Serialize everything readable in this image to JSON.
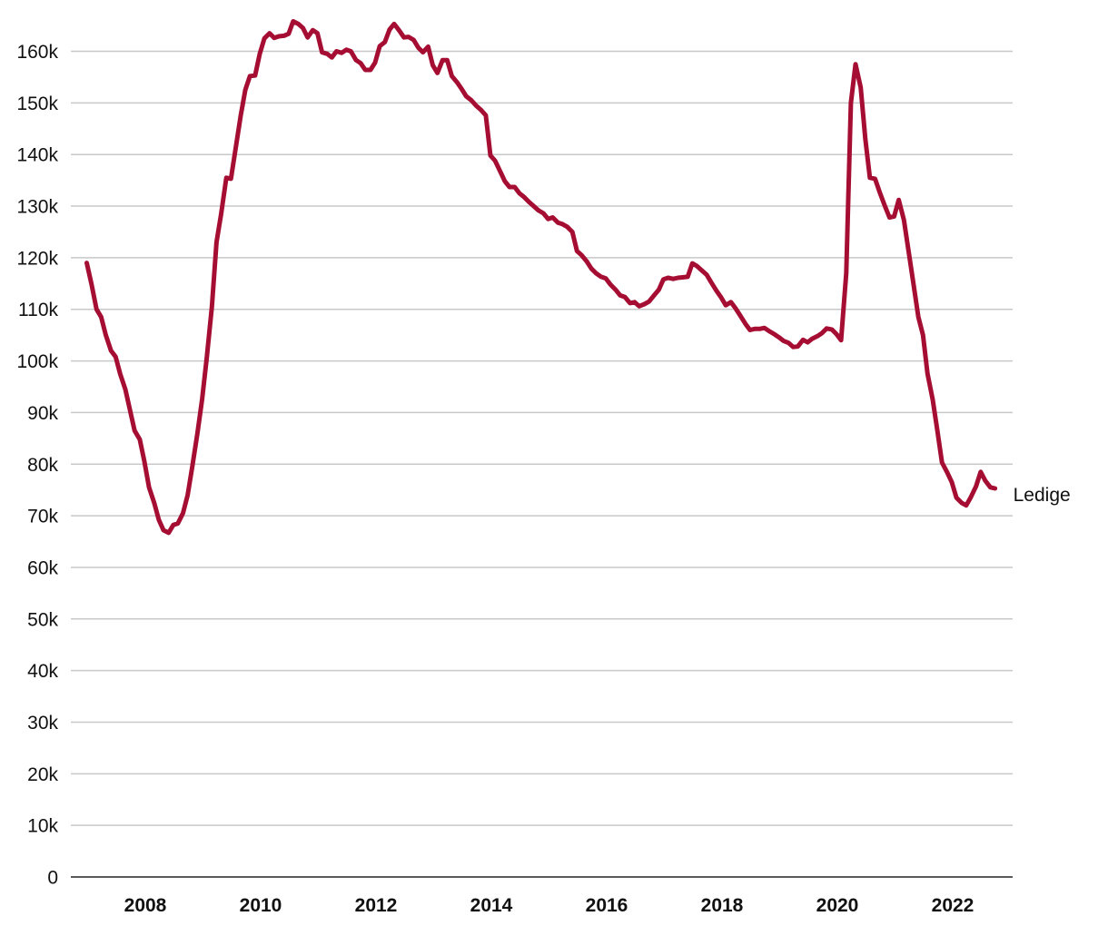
{
  "chart_data": {
    "type": "line",
    "title": "",
    "xlabel": "",
    "ylabel": "",
    "xlim": [
      2007.0,
      2022.9
    ],
    "ylim": [
      0,
      165000
    ],
    "x_ticks": [
      2008,
      2010,
      2012,
      2014,
      2016,
      2018,
      2020,
      2022
    ],
    "x_tick_labels": [
      "2008",
      "2010",
      "2012",
      "2014",
      "2016",
      "2018",
      "2020",
      "2022"
    ],
    "y_ticks": [
      0,
      10000,
      20000,
      30000,
      40000,
      50000,
      60000,
      70000,
      80000,
      90000,
      100000,
      110000,
      120000,
      130000,
      140000,
      150000,
      160000
    ],
    "y_tick_labels": [
      "0",
      "10k",
      "20k",
      "30k",
      "40k",
      "50k",
      "60k",
      "70k",
      "80k",
      "90k",
      "100k",
      "110k",
      "120k",
      "130k",
      "140k",
      "150k",
      "160k"
    ],
    "grid": true,
    "legend": "none",
    "series": [
      {
        "name": "Ledige",
        "color": "#a50e32",
        "x": [
          2007.0,
          2007.08,
          2007.17,
          2007.25,
          2007.33,
          2007.42,
          2007.5,
          2007.58,
          2007.67,
          2007.75,
          2007.83,
          2007.92,
          2008.0,
          2008.08,
          2008.17,
          2008.25,
          2008.33,
          2008.42,
          2008.5,
          2008.58,
          2008.67,
          2008.75,
          2008.83,
          2008.92,
          2009.0,
          2009.08,
          2009.17,
          2009.25,
          2009.33,
          2009.42,
          2009.5,
          2009.58,
          2009.67,
          2009.75,
          2009.83,
          2009.92,
          2010.0,
          2010.08,
          2010.17,
          2010.25,
          2010.33,
          2010.42,
          2010.5,
          2010.58,
          2010.67,
          2010.75,
          2010.83,
          2010.92,
          2011.0,
          2011.08,
          2011.17,
          2011.25,
          2011.33,
          2011.42,
          2011.5,
          2011.58,
          2011.67,
          2011.75,
          2011.83,
          2011.92,
          2012.0,
          2012.08,
          2012.17,
          2012.25,
          2012.33,
          2012.42,
          2012.5,
          2012.58,
          2012.67,
          2012.75,
          2012.83,
          2012.92,
          2013.0,
          2013.08,
          2013.17,
          2013.25,
          2013.33,
          2013.42,
          2013.5,
          2013.58,
          2013.67,
          2013.75,
          2013.83,
          2013.92,
          2014.0,
          2014.08,
          2014.17,
          2014.25,
          2014.33,
          2014.42,
          2014.5,
          2014.58,
          2014.67,
          2014.75,
          2014.83,
          2014.92,
          2015.0,
          2015.08,
          2015.17,
          2015.25,
          2015.33,
          2015.42,
          2015.5,
          2015.58,
          2015.67,
          2015.75,
          2015.83,
          2015.92,
          2016.0,
          2016.08,
          2016.17,
          2016.25,
          2016.33,
          2016.42,
          2016.5,
          2016.58,
          2016.67,
          2016.75,
          2016.83,
          2016.92,
          2017.0,
          2017.08,
          2017.17,
          2017.25,
          2017.33,
          2017.42,
          2017.5,
          2017.58,
          2017.67,
          2017.75,
          2017.83,
          2017.92,
          2018.0,
          2018.08,
          2018.17,
          2018.25,
          2018.33,
          2018.42,
          2018.5,
          2018.58,
          2018.67,
          2018.75,
          2018.83,
          2018.92,
          2019.0,
          2019.08,
          2019.17,
          2019.25,
          2019.33,
          2019.42,
          2019.5,
          2019.58,
          2019.67,
          2019.75,
          2019.83,
          2019.92,
          2020.0,
          2020.08,
          2020.17,
          2020.25,
          2020.33,
          2020.42,
          2020.5,
          2020.58,
          2020.67,
          2020.75,
          2020.83,
          2020.92,
          2021.0,
          2021.08,
          2021.17,
          2021.25,
          2021.33,
          2021.42,
          2021.5,
          2021.58,
          2021.67,
          2021.75,
          2021.83,
          2021.92,
          2022.0,
          2022.08,
          2022.17,
          2022.25,
          2022.33,
          2022.42,
          2022.5,
          2022.58,
          2022.67,
          2022.75
        ],
        "values": [
          119000,
          115000,
          110000,
          108500,
          105000,
          102000,
          100800,
          97500,
          94500,
          90500,
          86500,
          84800,
          80500,
          75500,
          72500,
          69200,
          67200,
          66700,
          68200,
          68500,
          70500,
          74000,
          79500,
          86000,
          92500,
          100500,
          110500,
          123000,
          128500,
          135500,
          135300,
          141000,
          147500,
          152500,
          155200,
          155300,
          159500,
          162500,
          163500,
          162600,
          162900,
          163000,
          163400,
          165800,
          165300,
          164500,
          162700,
          164100,
          163500,
          159800,
          159500,
          158800,
          160000,
          159700,
          160300,
          160000,
          158300,
          157700,
          156400,
          156400,
          157800,
          161000,
          161800,
          164200,
          165300,
          164000,
          162700,
          162800,
          162200,
          160700,
          159800,
          160900,
          157300,
          155800,
          158300,
          158300,
          155200,
          154000,
          152700,
          151300,
          150500,
          149500,
          148700,
          147600,
          139800,
          138800,
          136700,
          134800,
          133700,
          133700,
          132500,
          131800,
          130800,
          130000,
          129200,
          128600,
          127500,
          127800,
          126800,
          126500,
          126000,
          125000,
          121300,
          120500,
          119300,
          117900,
          117000,
          116300,
          116000,
          114800,
          113800,
          112700,
          112400,
          111200,
          111400,
          110600,
          111000,
          111500,
          112600,
          113800,
          115800,
          116100,
          115900,
          116100,
          116200,
          116300,
          118900,
          118400,
          117500,
          116700,
          115200,
          113600,
          112300,
          110800,
          111400,
          110200,
          108800,
          107200,
          106000,
          106200,
          106200,
          106400,
          105800,
          105200,
          104600,
          103900,
          103500,
          102700,
          102800,
          104100,
          103600,
          104300,
          104800,
          105400,
          106300,
          106100,
          105200,
          104000,
          117000,
          150000,
          157500,
          153000,
          143000,
          135500,
          135300,
          132700,
          130300,
          127800,
          128000,
          131200,
          127300,
          121300,
          115300,
          108500,
          105000,
          97500,
          92500,
          86500,
          80300,
          78400,
          76500,
          73500,
          72500,
          72000,
          73600,
          75700,
          78500,
          76800,
          75500,
          75300
        ]
      }
    ],
    "annotations": [
      {
        "text": "Ledige",
        "anchor": "end-of-series-right"
      }
    ]
  }
}
